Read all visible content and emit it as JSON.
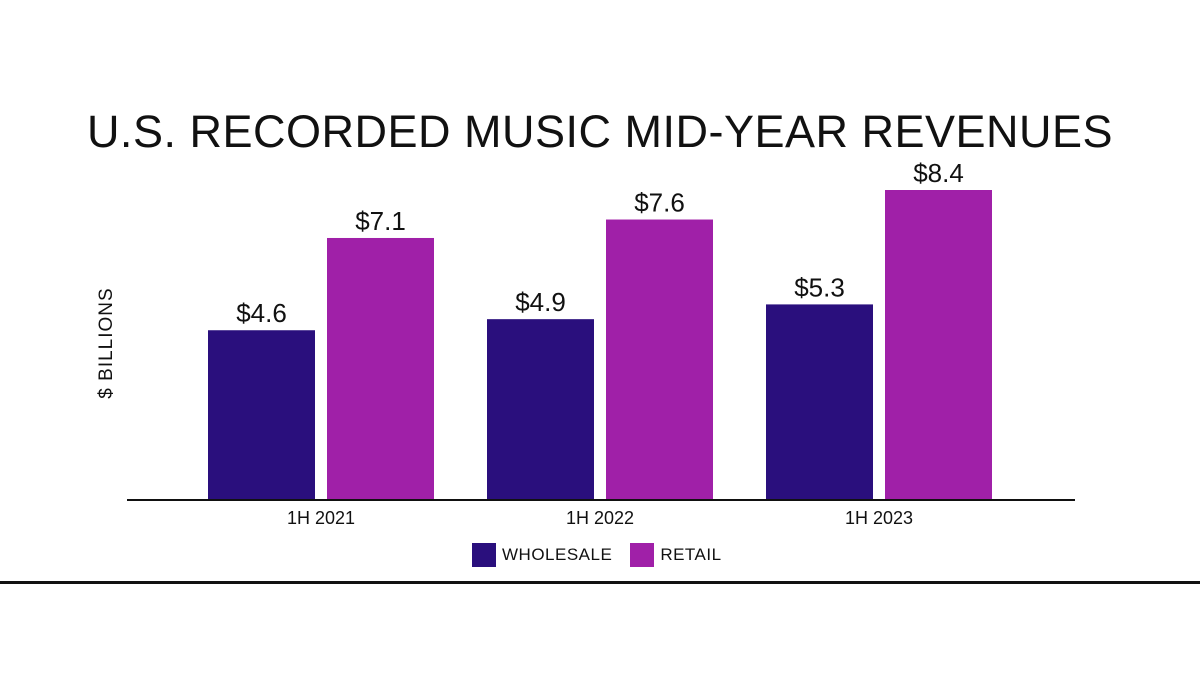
{
  "chart_data": {
    "type": "bar",
    "title": "U.S. RECORDED MUSIC MID-YEAR REVENUES",
    "ylabel": "$ BILLIONS",
    "xlabel": "",
    "categories": [
      "1H 2021",
      "1H 2022",
      "1H 2023"
    ],
    "series": [
      {
        "name": "WHOLESALE",
        "values": [
          4.6,
          4.9,
          5.3
        ],
        "labels": [
          "$4.6",
          "$4.9",
          "$5.3"
        ],
        "color": "#2a0f7d"
      },
      {
        "name": "RETAIL",
        "values": [
          7.1,
          7.6,
          8.4
        ],
        "labels": [
          "$7.1",
          "$7.6",
          "$8.4"
        ],
        "color": "#a020a8"
      }
    ],
    "ylim": [
      0,
      8.5
    ],
    "grid": false,
    "legend": "bottom-center"
  }
}
